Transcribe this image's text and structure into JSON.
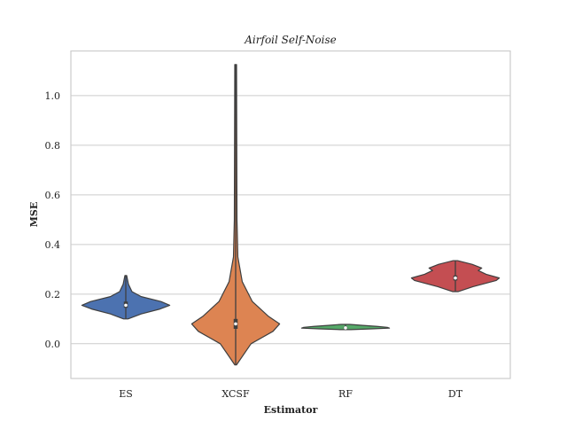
{
  "chart_data": {
    "type": "violin",
    "title": "Airfoil Self-Noise",
    "xlabel": "Estimator",
    "ylabel": "MSE",
    "categories": [
      "ES",
      "XCSF",
      "RF",
      "DT"
    ],
    "ylim": [
      -0.14,
      1.18
    ],
    "yticks": [
      0.0,
      0.2,
      0.4,
      0.6,
      0.8,
      1.0
    ],
    "ytick_labels": [
      "0.0",
      "0.2",
      "0.4",
      "0.6",
      "0.8",
      "1.0"
    ],
    "grid": true,
    "orientation": "vertical",
    "series": [
      {
        "category": "ES",
        "color": "#4C72B0",
        "min": 0.1,
        "max": 0.275,
        "q1": 0.145,
        "median": 0.155,
        "q3": 0.17,
        "profile": [
          [
            0.1,
            0.05
          ],
          [
            0.12,
            0.35
          ],
          [
            0.14,
            0.78
          ],
          [
            0.155,
            1.0
          ],
          [
            0.17,
            0.8
          ],
          [
            0.19,
            0.35
          ],
          [
            0.21,
            0.14
          ],
          [
            0.24,
            0.06
          ],
          [
            0.275,
            0.02
          ]
        ]
      },
      {
        "category": "XCSF",
        "color": "#DD8452",
        "min": -0.085,
        "max": 1.125,
        "q1": 0.06,
        "median": 0.08,
        "q3": 0.1,
        "profile": [
          [
            -0.085,
            0.02
          ],
          [
            0.0,
            0.35
          ],
          [
            0.05,
            0.85
          ],
          [
            0.08,
            1.0
          ],
          [
            0.11,
            0.75
          ],
          [
            0.17,
            0.38
          ],
          [
            0.25,
            0.15
          ],
          [
            0.35,
            0.05
          ],
          [
            0.5,
            0.03
          ],
          [
            1.125,
            0.02
          ]
        ]
      },
      {
        "category": "RF",
        "color": "#55A868",
        "min": 0.057,
        "max": 0.078,
        "q1": 0.062,
        "median": 0.064,
        "q3": 0.068,
        "profile": [
          [
            0.057,
            0.12
          ],
          [
            0.06,
            0.6
          ],
          [
            0.063,
            1.0
          ],
          [
            0.066,
            0.95
          ],
          [
            0.07,
            0.72
          ],
          [
            0.074,
            0.4
          ],
          [
            0.078,
            0.1
          ]
        ]
      },
      {
        "category": "DT",
        "color": "#C44E52",
        "min": 0.21,
        "max": 0.335,
        "q1": 0.255,
        "median": 0.265,
        "q3": 0.275,
        "profile": [
          [
            0.21,
            0.06
          ],
          [
            0.23,
            0.4
          ],
          [
            0.255,
            0.93
          ],
          [
            0.265,
            1.0
          ],
          [
            0.28,
            0.7
          ],
          [
            0.295,
            0.52
          ],
          [
            0.305,
            0.6
          ],
          [
            0.32,
            0.38
          ],
          [
            0.335,
            0.05
          ]
        ]
      }
    ]
  }
}
